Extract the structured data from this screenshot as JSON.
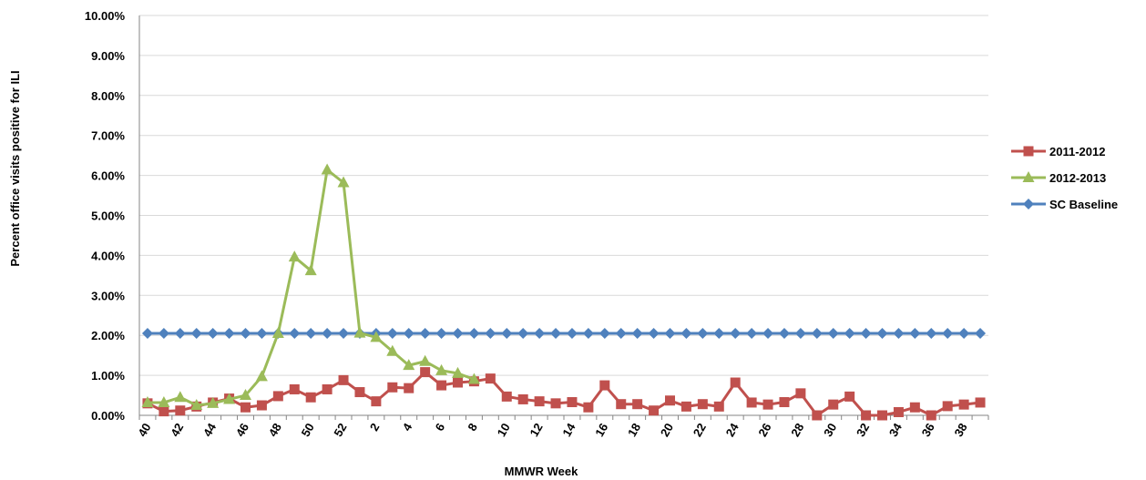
{
  "chart_data": {
    "type": "line",
    "title": "",
    "xlabel": "MMWR Week",
    "ylabel": "Percent office visits positive for ILI",
    "ylim": [
      0,
      10
    ],
    "y_ticks": [
      "0.00%",
      "1.00%",
      "2.00%",
      "3.00%",
      "4.00%",
      "5.00%",
      "6.00%",
      "7.00%",
      "8.00%",
      "9.00%",
      "10.00%"
    ],
    "grid": true,
    "legend_position": "right",
    "x": [
      "40",
      "41",
      "42",
      "43",
      "44",
      "45",
      "46",
      "47",
      "48",
      "49",
      "50",
      "51",
      "52",
      "1",
      "2",
      "3",
      "4",
      "5",
      "6",
      "7",
      "8",
      "9",
      "10",
      "11",
      "12",
      "13",
      "14",
      "15",
      "16",
      "17",
      "18",
      "19",
      "20",
      "21",
      "22",
      "23",
      "24",
      "25",
      "26",
      "27",
      "28",
      "29",
      "30",
      "31",
      "32",
      "33",
      "34",
      "35",
      "36",
      "37",
      "38",
      "39"
    ],
    "x_tick_labels": [
      "40",
      "42",
      "44",
      "46",
      "48",
      "50",
      "52",
      "2",
      "4",
      "6",
      "8",
      "10",
      "12",
      "14",
      "16",
      "18",
      "20",
      "22",
      "24",
      "26",
      "28",
      "30",
      "32",
      "34",
      "36",
      "38"
    ],
    "series": [
      {
        "name": "2011-2012",
        "color": "#c0504d",
        "marker": "square",
        "values": [
          0.3,
          0.1,
          0.12,
          0.22,
          0.32,
          0.42,
          0.2,
          0.25,
          0.48,
          0.65,
          0.45,
          0.65,
          0.88,
          0.58,
          0.35,
          0.7,
          0.68,
          1.08,
          0.75,
          0.82,
          0.85,
          0.92,
          0.47,
          0.4,
          0.35,
          0.3,
          0.33,
          0.2,
          0.75,
          0.28,
          0.28,
          0.12,
          0.37,
          0.22,
          0.28,
          0.22,
          0.82,
          0.32,
          0.27,
          0.33,
          0.55,
          0.0,
          0.27,
          0.47,
          0.0,
          0.0,
          0.08,
          0.2,
          0.0,
          0.23,
          0.27,
          0.32
        ]
      },
      {
        "name": "2012-2013",
        "color": "#9bbb59",
        "marker": "triangle",
        "values": [
          0.32,
          0.32,
          0.45,
          0.25,
          0.3,
          0.4,
          0.5,
          0.97,
          2.05,
          3.96,
          3.62,
          6.14,
          5.82,
          2.06,
          1.95,
          1.6,
          1.25,
          1.35,
          1.12,
          1.05,
          0.9,
          null,
          null,
          null,
          null,
          null,
          null,
          null,
          null,
          null,
          null,
          null,
          null,
          null,
          null,
          null,
          null,
          null,
          null,
          null,
          null,
          null,
          null,
          null,
          null,
          null,
          null,
          null,
          null,
          null,
          null,
          null
        ]
      },
      {
        "name": "SC Baseline",
        "color": "#4f81bd",
        "marker": "diamond",
        "values": [
          2.05,
          2.05,
          2.05,
          2.05,
          2.05,
          2.05,
          2.05,
          2.05,
          2.05,
          2.05,
          2.05,
          2.05,
          2.05,
          2.05,
          2.05,
          2.05,
          2.05,
          2.05,
          2.05,
          2.05,
          2.05,
          2.05,
          2.05,
          2.05,
          2.05,
          2.05,
          2.05,
          2.05,
          2.05,
          2.05,
          2.05,
          2.05,
          2.05,
          2.05,
          2.05,
          2.05,
          2.05,
          2.05,
          2.05,
          2.05,
          2.05,
          2.05,
          2.05,
          2.05,
          2.05,
          2.05,
          2.05,
          2.05,
          2.05,
          2.05,
          2.05,
          2.05
        ]
      }
    ]
  }
}
